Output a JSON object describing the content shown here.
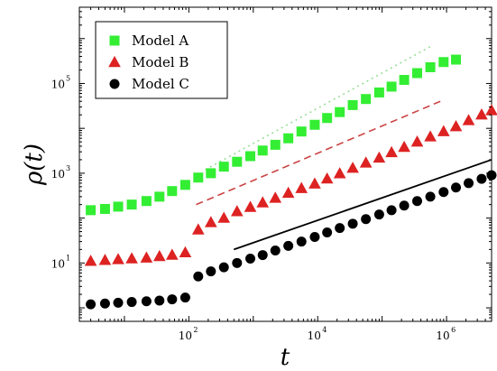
{
  "chart_data": {
    "type": "scatter",
    "title": "",
    "xlabel": "t",
    "ylabel": "ρ(t)",
    "xscale": "log",
    "yscale": "log",
    "xlim": [
      2,
      5000000
    ],
    "ylim": [
      0.5,
      5000000
    ],
    "grid": false,
    "legend": "top-left",
    "x_ticks": [
      {
        "base": "10",
        "exp": "2",
        "value": 100
      },
      {
        "base": "10",
        "exp": "4",
        "value": 10000
      },
      {
        "base": "10",
        "exp": "6",
        "value": 1000000
      }
    ],
    "y_ticks": [
      {
        "base": "10",
        "exp": "1",
        "value": 10
      },
      {
        "base": "10",
        "exp": "3",
        "value": 1000
      },
      {
        "base": "10",
        "exp": "5",
        "value": 100000
      }
    ],
    "series": [
      {
        "name": "Model A",
        "marker": "square",
        "color": "#33ee33",
        "points": [
          [
            3,
            150
          ],
          [
            5,
            160
          ],
          [
            8,
            180
          ],
          [
            13,
            200
          ],
          [
            22,
            240
          ],
          [
            35,
            300
          ],
          [
            55,
            400
          ],
          [
            88,
            550
          ],
          [
            140,
            800
          ],
          [
            220,
            1000
          ],
          [
            350,
            1400
          ],
          [
            560,
            1800
          ],
          [
            900,
            2400
          ],
          [
            1400,
            3200
          ],
          [
            2200,
            4300
          ],
          [
            3500,
            6000
          ],
          [
            5600,
            8500
          ],
          [
            9000,
            12000
          ],
          [
            14000,
            17000
          ],
          [
            22000,
            23000
          ],
          [
            35000,
            33000
          ],
          [
            56000,
            45000
          ],
          [
            90000,
            63000
          ],
          [
            140000,
            85000
          ],
          [
            220000,
            120000
          ],
          [
            350000,
            170000
          ],
          [
            560000,
            230000
          ],
          [
            900000,
            300000
          ],
          [
            1400000,
            340000
          ]
        ]
      },
      {
        "name": "Model B",
        "marker": "triangle",
        "color": "#dd2222",
        "points": [
          [
            3,
            11
          ],
          [
            5,
            11.5
          ],
          [
            8,
            12
          ],
          [
            13,
            12.5
          ],
          [
            22,
            13
          ],
          [
            35,
            14
          ],
          [
            55,
            15
          ],
          [
            88,
            17
          ],
          [
            140,
            55
          ],
          [
            220,
            80
          ],
          [
            350,
            100
          ],
          [
            560,
            140
          ],
          [
            900,
            175
          ],
          [
            1400,
            220
          ],
          [
            2200,
            280
          ],
          [
            3500,
            360
          ],
          [
            5600,
            460
          ],
          [
            9000,
            580
          ],
          [
            14000,
            750
          ],
          [
            22000,
            980
          ],
          [
            35000,
            1300
          ],
          [
            56000,
            1700
          ],
          [
            90000,
            2200
          ],
          [
            140000,
            2900
          ],
          [
            220000,
            3800
          ],
          [
            350000,
            5000
          ],
          [
            560000,
            6500
          ],
          [
            900000,
            8500
          ],
          [
            1400000,
            11000
          ],
          [
            2200000,
            15000
          ],
          [
            3500000,
            20000
          ],
          [
            5000000,
            25000
          ]
        ]
      },
      {
        "name": "Model C",
        "marker": "circle",
        "color": "#000000",
        "points": [
          [
            3,
            1.2
          ],
          [
            5,
            1.25
          ],
          [
            8,
            1.3
          ],
          [
            13,
            1.35
          ],
          [
            22,
            1.4
          ],
          [
            35,
            1.45
          ],
          [
            55,
            1.55
          ],
          [
            88,
            1.7
          ],
          [
            140,
            5
          ],
          [
            220,
            6.5
          ],
          [
            350,
            8
          ],
          [
            560,
            10
          ],
          [
            900,
            12.5
          ],
          [
            1400,
            15
          ],
          [
            2200,
            19
          ],
          [
            3500,
            24
          ],
          [
            5600,
            30
          ],
          [
            9000,
            38
          ],
          [
            14000,
            48
          ],
          [
            22000,
            60
          ],
          [
            35000,
            75
          ],
          [
            56000,
            95
          ],
          [
            90000,
            120
          ],
          [
            140000,
            150
          ],
          [
            220000,
            190
          ],
          [
            350000,
            240
          ],
          [
            560000,
            300
          ],
          [
            900000,
            380
          ],
          [
            1400000,
            480
          ],
          [
            2200000,
            600
          ],
          [
            3500000,
            750
          ],
          [
            5000000,
            900
          ]
        ]
      }
    ],
    "guide_lines": [
      {
        "style": "dotted",
        "color": "#99dd99",
        "from": [
          180,
          1200
        ],
        "to": [
          600000,
          700000
        ]
      },
      {
        "style": "dashed",
        "color": "#cc4444",
        "from": [
          130,
          200
        ],
        "to": [
          800000,
          40000
        ]
      },
      {
        "style": "solid",
        "color": "#000000",
        "from": [
          500,
          20
        ],
        "to": [
          5000000,
          2000
        ]
      }
    ]
  }
}
